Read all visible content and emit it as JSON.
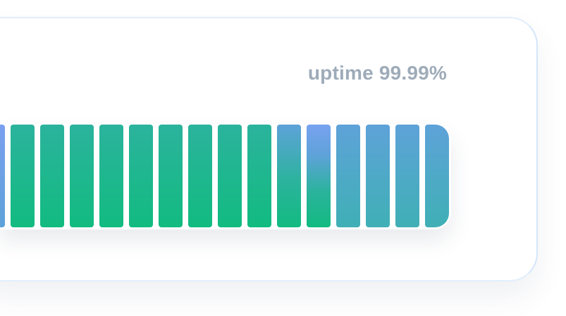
{
  "uptime": {
    "label": "uptime 99.99%"
  },
  "bars": {
    "count": 16,
    "colors": {
      "green_top": "#2bb39d",
      "green_bottom": "#12bb80",
      "mixed_top": "#5ea2d9",
      "blue_top": "#78a2f0",
      "teal_bottom": "#3fb0b5",
      "partial_left": "#7aa0ef"
    },
    "segments": [
      {
        "kind": "partial"
      },
      {
        "kind": "green"
      },
      {
        "kind": "green"
      },
      {
        "kind": "green"
      },
      {
        "kind": "green"
      },
      {
        "kind": "green"
      },
      {
        "kind": "green"
      },
      {
        "kind": "green"
      },
      {
        "kind": "green"
      },
      {
        "kind": "green"
      },
      {
        "kind": "transition"
      },
      {
        "kind": "blue-green"
      },
      {
        "kind": "blue-teal"
      },
      {
        "kind": "blue-teal"
      },
      {
        "kind": "blue-teal"
      },
      {
        "kind": "end"
      }
    ]
  }
}
